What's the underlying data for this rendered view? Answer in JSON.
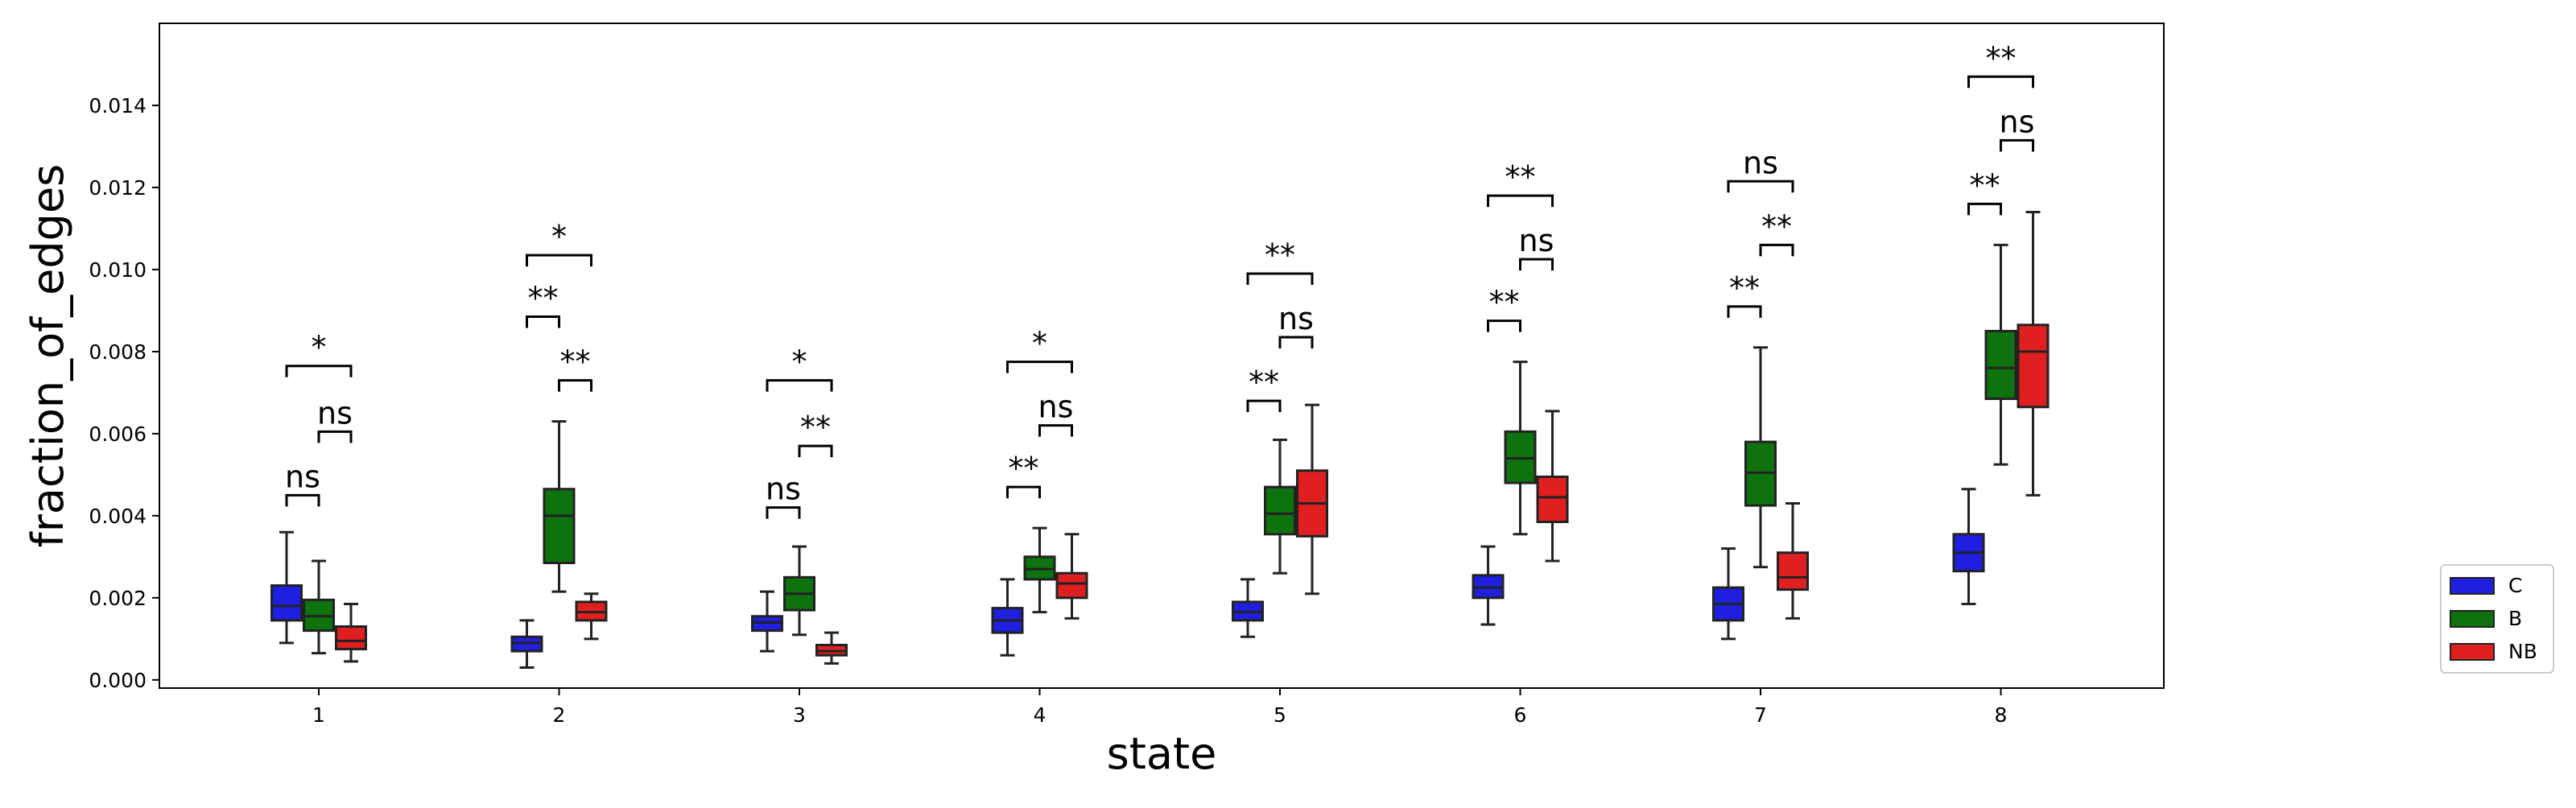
{
  "chart_data": {
    "type": "box",
    "xlabel": "state",
    "ylabel": "fraction_of_edges",
    "categories": [
      "1",
      "2",
      "3",
      "4",
      "5",
      "6",
      "7",
      "8"
    ],
    "ylim": [
      -0.0002,
      0.016
    ],
    "yticks": [
      "0.000",
      "0.002",
      "0.004",
      "0.006",
      "0.008",
      "0.010",
      "0.012",
      "0.014"
    ],
    "ytick_values": [
      0.0,
      0.002,
      0.004,
      0.006,
      0.008,
      0.01,
      0.012,
      0.014
    ],
    "legend_position": "outside-right",
    "series": [
      {
        "name": "C",
        "color": "#1f1fe0",
        "boxes": [
          {
            "whislo": 0.0009,
            "q1": 0.00145,
            "med": 0.0018,
            "q3": 0.0023,
            "whishi": 0.0036
          },
          {
            "whislo": 0.0003,
            "q1": 0.0007,
            "med": 0.0009,
            "q3": 0.00105,
            "whishi": 0.00145
          },
          {
            "whislo": 0.0007,
            "q1": 0.0012,
            "med": 0.0014,
            "q3": 0.00155,
            "whishi": 0.00215
          },
          {
            "whislo": 0.0006,
            "q1": 0.00115,
            "med": 0.00145,
            "q3": 0.00175,
            "whishi": 0.00245
          },
          {
            "whislo": 0.00105,
            "q1": 0.00145,
            "med": 0.00165,
            "q3": 0.0019,
            "whishi": 0.00245
          },
          {
            "whislo": 0.00135,
            "q1": 0.002,
            "med": 0.00225,
            "q3": 0.00255,
            "whishi": 0.00325
          },
          {
            "whislo": 0.001,
            "q1": 0.00145,
            "med": 0.00185,
            "q3": 0.00225,
            "whishi": 0.0032
          },
          {
            "whislo": 0.00185,
            "q1": 0.00265,
            "med": 0.0031,
            "q3": 0.00355,
            "whishi": 0.00465
          }
        ]
      },
      {
        "name": "B",
        "color": "#0e720e",
        "boxes": [
          {
            "whislo": 0.00065,
            "q1": 0.0012,
            "med": 0.00155,
            "q3": 0.00195,
            "whishi": 0.0029
          },
          {
            "whislo": 0.00215,
            "q1": 0.00285,
            "med": 0.004,
            "q3": 0.00465,
            "whishi": 0.0063
          },
          {
            "whislo": 0.0011,
            "q1": 0.0017,
            "med": 0.0021,
            "q3": 0.0025,
            "whishi": 0.00325
          },
          {
            "whislo": 0.00165,
            "q1": 0.00245,
            "med": 0.0027,
            "q3": 0.003,
            "whishi": 0.0037
          },
          {
            "whislo": 0.0026,
            "q1": 0.00355,
            "med": 0.00405,
            "q3": 0.0047,
            "whishi": 0.00585
          },
          {
            "whislo": 0.00355,
            "q1": 0.0048,
            "med": 0.0054,
            "q3": 0.00605,
            "whishi": 0.00775
          },
          {
            "whislo": 0.00275,
            "q1": 0.00425,
            "med": 0.00505,
            "q3": 0.0058,
            "whishi": 0.0081
          },
          {
            "whislo": 0.00525,
            "q1": 0.00685,
            "med": 0.0076,
            "q3": 0.0085,
            "whishi": 0.0106
          }
        ]
      },
      {
        "name": "NB",
        "color": "#e02020",
        "boxes": [
          {
            "whislo": 0.00045,
            "q1": 0.00075,
            "med": 0.00095,
            "q3": 0.0013,
            "whishi": 0.00185
          },
          {
            "whislo": 0.001,
            "q1": 0.00145,
            "med": 0.00165,
            "q3": 0.0019,
            "whishi": 0.0021
          },
          {
            "whislo": 0.0004,
            "q1": 0.0006,
            "med": 0.0007,
            "q3": 0.00085,
            "whishi": 0.00115
          },
          {
            "whislo": 0.0015,
            "q1": 0.002,
            "med": 0.00235,
            "q3": 0.0026,
            "whishi": 0.00355
          },
          {
            "whislo": 0.0021,
            "q1": 0.0035,
            "med": 0.0043,
            "q3": 0.0051,
            "whishi": 0.0067
          },
          {
            "whislo": 0.0029,
            "q1": 0.00385,
            "med": 0.00445,
            "q3": 0.00495,
            "whishi": 0.00655
          },
          {
            "whislo": 0.0015,
            "q1": 0.0022,
            "med": 0.0025,
            "q3": 0.0031,
            "whishi": 0.0043
          },
          {
            "whislo": 0.0045,
            "q1": 0.00665,
            "med": 0.008,
            "q3": 0.00865,
            "whishi": 0.0114
          }
        ]
      }
    ],
    "annotations": [
      {
        "category": "1",
        "pair": [
          "C",
          "B"
        ],
        "label": "ns",
        "y": 0.0045
      },
      {
        "category": "1",
        "pair": [
          "B",
          "NB"
        ],
        "label": "ns",
        "y": 0.00605
      },
      {
        "category": "1",
        "pair": [
          "C",
          "NB"
        ],
        "label": "*",
        "y": 0.00765
      },
      {
        "category": "2",
        "pair": [
          "B",
          "NB"
        ],
        "label": "**",
        "y": 0.0073
      },
      {
        "category": "2",
        "pair": [
          "C",
          "B"
        ],
        "label": "**",
        "y": 0.00885
      },
      {
        "category": "2",
        "pair": [
          "C",
          "NB"
        ],
        "label": "*",
        "y": 0.01035
      },
      {
        "category": "3",
        "pair": [
          "C",
          "B"
        ],
        "label": "ns",
        "y": 0.0042
      },
      {
        "category": "3",
        "pair": [
          "B",
          "NB"
        ],
        "label": "**",
        "y": 0.0057
      },
      {
        "category": "3",
        "pair": [
          "C",
          "NB"
        ],
        "label": "*",
        "y": 0.0073
      },
      {
        "category": "4",
        "pair": [
          "C",
          "B"
        ],
        "label": "**",
        "y": 0.0047
      },
      {
        "category": "4",
        "pair": [
          "B",
          "NB"
        ],
        "label": "ns",
        "y": 0.0062
      },
      {
        "category": "4",
        "pair": [
          "C",
          "NB"
        ],
        "label": "*",
        "y": 0.00775
      },
      {
        "category": "5",
        "pair": [
          "C",
          "B"
        ],
        "label": "**",
        "y": 0.0068
      },
      {
        "category": "5",
        "pair": [
          "B",
          "NB"
        ],
        "label": "ns",
        "y": 0.00835
      },
      {
        "category": "5",
        "pair": [
          "C",
          "NB"
        ],
        "label": "**",
        "y": 0.0099
      },
      {
        "category": "6",
        "pair": [
          "C",
          "B"
        ],
        "label": "**",
        "y": 0.00875
      },
      {
        "category": "6",
        "pair": [
          "B",
          "NB"
        ],
        "label": "ns",
        "y": 0.01025
      },
      {
        "category": "6",
        "pair": [
          "C",
          "NB"
        ],
        "label": "**",
        "y": 0.0118
      },
      {
        "category": "7",
        "pair": [
          "C",
          "B"
        ],
        "label": "**",
        "y": 0.0091
      },
      {
        "category": "7",
        "pair": [
          "B",
          "NB"
        ],
        "label": "**",
        "y": 0.0106
      },
      {
        "category": "7",
        "pair": [
          "C",
          "NB"
        ],
        "label": "ns",
        "y": 0.01215
      },
      {
        "category": "8",
        "pair": [
          "C",
          "B"
        ],
        "label": "**",
        "y": 0.0116
      },
      {
        "category": "8",
        "pair": [
          "B",
          "NB"
        ],
        "label": "ns",
        "y": 0.01315
      },
      {
        "category": "8",
        "pair": [
          "C",
          "NB"
        ],
        "label": "**",
        "y": 0.0147
      }
    ]
  }
}
